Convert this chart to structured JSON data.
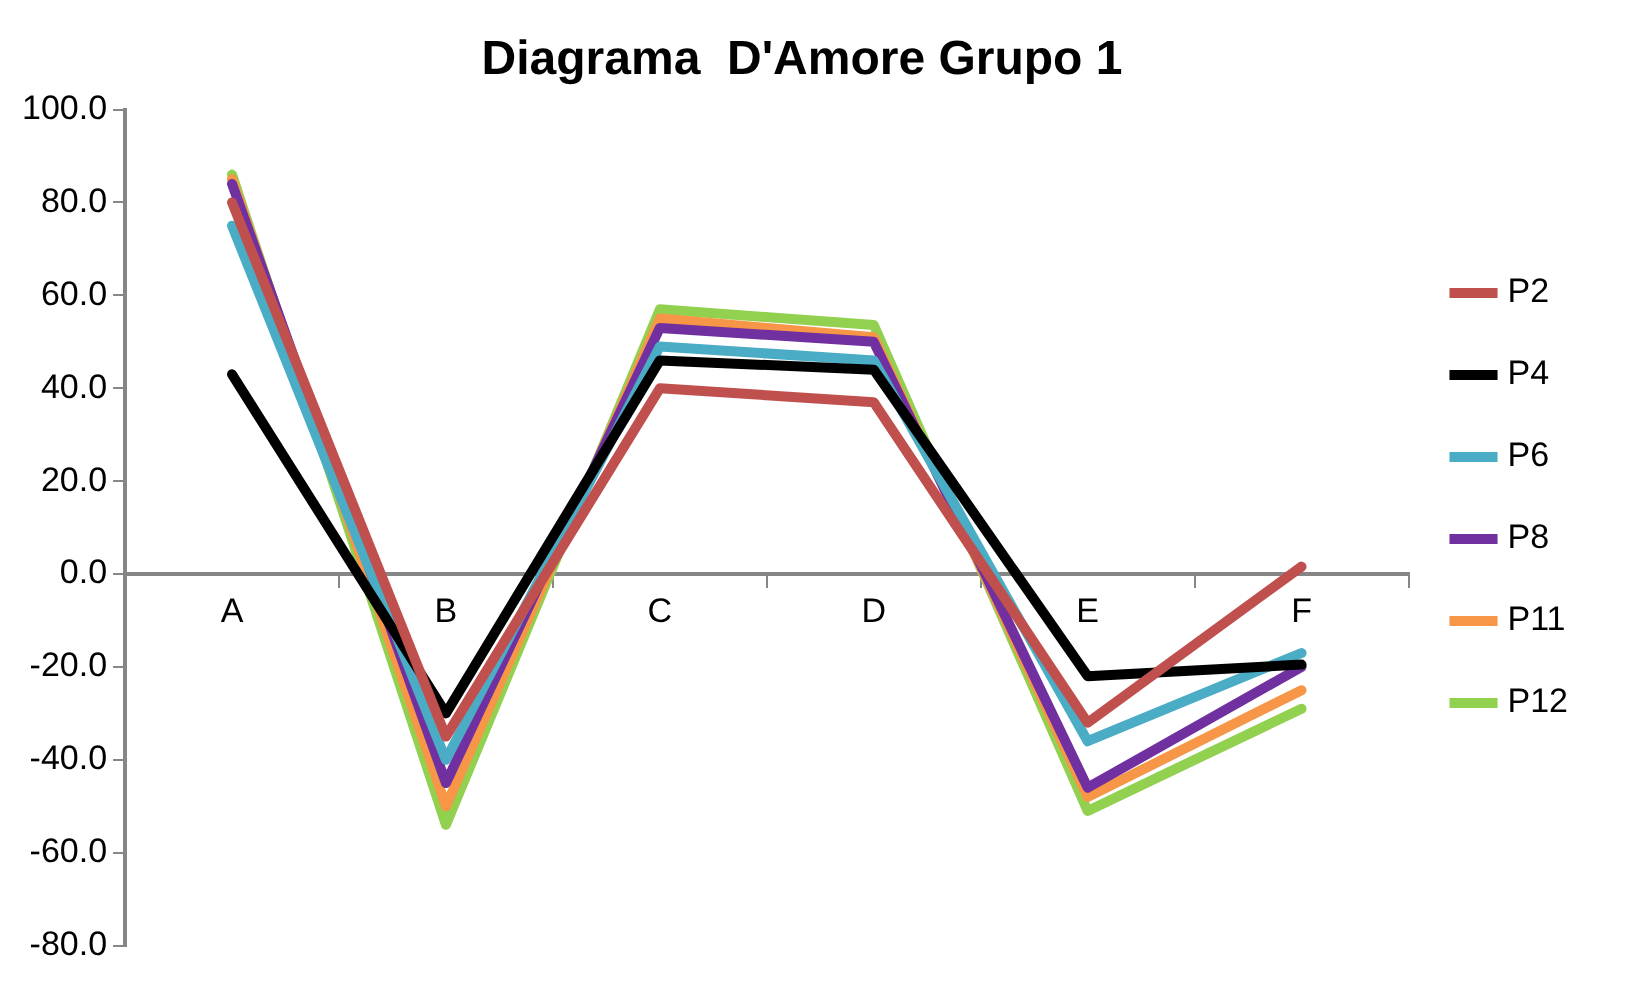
{
  "chart_data": {
    "type": "line",
    "title": "Diagrama  D'Amore Grupo 1",
    "categories": [
      "A",
      "B",
      "C",
      "D",
      "E",
      "F"
    ],
    "series": [
      {
        "name": "P2",
        "color": "#c0504d",
        "values": [
          80,
          -35,
          40,
          37,
          -32,
          1.6
        ]
      },
      {
        "name": "P4",
        "color": "#000000",
        "values": [
          43,
          -30,
          46,
          44,
          -22,
          -19.5
        ]
      },
      {
        "name": "P6",
        "color": "#4bacc6",
        "values": [
          75,
          -40,
          49,
          46,
          -36,
          -17
        ]
      },
      {
        "name": "P8",
        "color": "#7030a0",
        "values": [
          84,
          -45,
          53,
          50,
          -46,
          -20
        ]
      },
      {
        "name": "P11",
        "color": "#f79646",
        "values": [
          85,
          -50,
          55,
          51,
          -48,
          -25
        ]
      },
      {
        "name": "P12",
        "color": "#92d050",
        "values": [
          86,
          -54,
          57,
          53.6,
          -51,
          -29
        ]
      }
    ],
    "ylim": [
      -80,
      100
    ],
    "yticks": [
      {
        "value": -80,
        "label": "-80.0"
      },
      {
        "value": -60,
        "label": "-60.0"
      },
      {
        "value": -40,
        "label": "-40.0"
      },
      {
        "value": -20,
        "label": "-20.0"
      },
      {
        "value": 0,
        "label": "0.0"
      },
      {
        "value": 20,
        "label": "20.0"
      },
      {
        "value": 40,
        "label": "40.0"
      },
      {
        "value": 60,
        "label": "60.0"
      },
      {
        "value": 80,
        "label": "80.0"
      },
      {
        "value": 100,
        "label": "100.0"
      }
    ],
    "grid": false,
    "legend": "right",
    "marker": "none",
    "line_style": "solid"
  }
}
